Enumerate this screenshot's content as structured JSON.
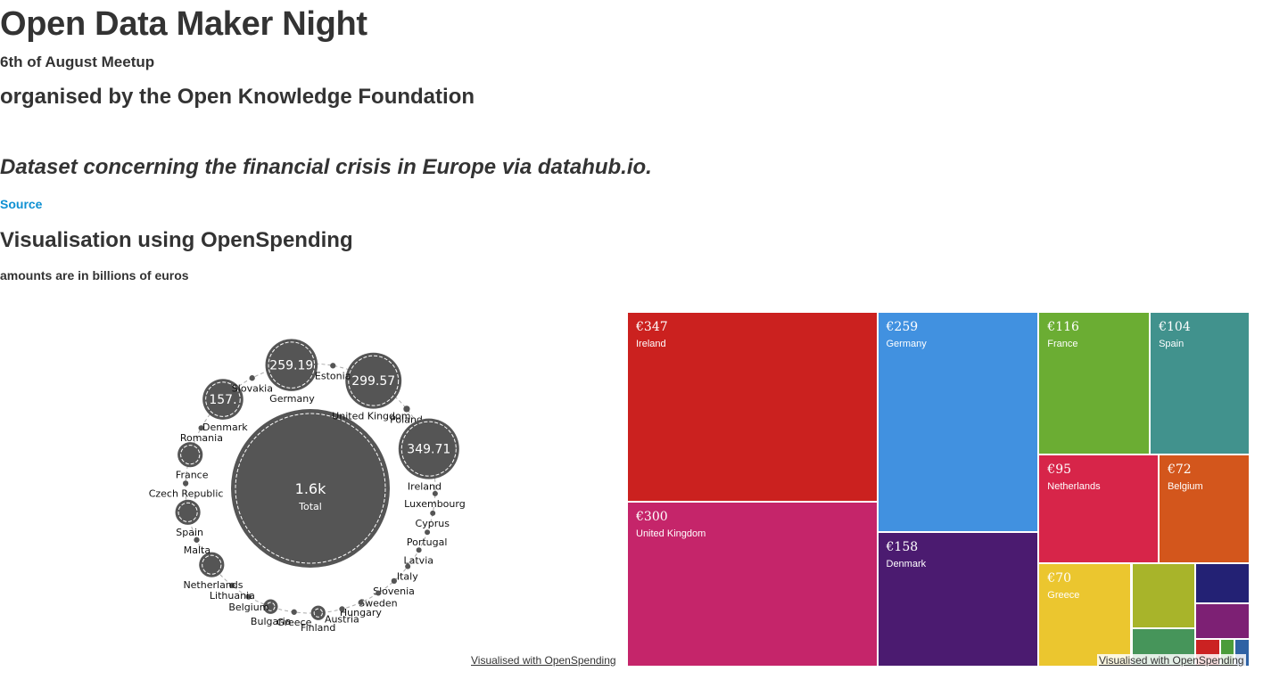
{
  "page": {
    "title": "Open Data Maker Night",
    "subtitle": "6th of August Meetup",
    "organiser": "organised by the Open Knowledge Foundation",
    "dataset_heading": "Dataset concerning the financial crisis in Europe via datahub.io.",
    "source_link": "Source",
    "vis_heading": "Visualisation using OpenSpending",
    "amounts_note": "amounts are in billions of euros",
    "credit_left": "Visualised with OpenSpending",
    "credit_right": "Visualised with OpenSpending"
  },
  "colors": {
    "bubble_fill": "#555555",
    "link": "#0e90d2"
  },
  "chart_data": [
    {
      "type": "bubble",
      "center": {
        "value_label": "1.6k",
        "label": "Total"
      },
      "nodes": [
        {
          "label": "United Kingdom",
          "value": 299.57,
          "value_label": "299.57"
        },
        {
          "label": "Poland",
          "value": 4,
          "value_label": ""
        },
        {
          "label": "Ireland",
          "value": 349.71,
          "value_label": "349.71"
        },
        {
          "label": "Luxembourg",
          "value": 2,
          "value_label": ""
        },
        {
          "label": "Cyprus",
          "value": 1,
          "value_label": ""
        },
        {
          "label": "Portugal",
          "value": 1,
          "value_label": ""
        },
        {
          "label": "Latvia",
          "value": 1,
          "value_label": ""
        },
        {
          "label": "Italy",
          "value": 1,
          "value_label": ""
        },
        {
          "label": "Slovenia",
          "value": 3,
          "value_label": ""
        },
        {
          "label": "Sweden",
          "value": 1,
          "value_label": ""
        },
        {
          "label": "Hungary",
          "value": 2,
          "value_label": ""
        },
        {
          "label": "Austria",
          "value": 3,
          "value_label": ""
        },
        {
          "label": "Finland",
          "value": 20,
          "value_label": ""
        },
        {
          "label": "Greece",
          "value": 3,
          "value_label": ""
        },
        {
          "label": "Bulgaria",
          "value": 20,
          "value_label": ""
        },
        {
          "label": "Belgium",
          "value": 3,
          "value_label": ""
        },
        {
          "label": "Lithuania",
          "value": 3,
          "value_label": ""
        },
        {
          "label": "Netherlands",
          "value": 60,
          "value_label": ""
        },
        {
          "label": "Malta",
          "value": 3,
          "value_label": ""
        },
        {
          "label": "Spain",
          "value": 60,
          "value_label": ""
        },
        {
          "label": "Czech Republic",
          "value": 3,
          "value_label": ""
        },
        {
          "label": "France",
          "value": 60,
          "value_label": ""
        },
        {
          "label": "Romania",
          "value": 1,
          "value_label": ""
        },
        {
          "label": "Denmark",
          "value": 157,
          "value_label": "157."
        },
        {
          "label": "Slovakia",
          "value": 3,
          "value_label": ""
        },
        {
          "label": "Germany",
          "value": 259.19,
          "value_label": "259.19"
        },
        {
          "label": "Estonia",
          "value": 3,
          "value_label": ""
        }
      ]
    },
    {
      "type": "treemap",
      "unit": "billions of euros",
      "tiles": [
        {
          "label": "Ireland",
          "value_label": "€347",
          "value": 347,
          "color": "#cb211f"
        },
        {
          "label": "United Kingdom",
          "value_label": "€300",
          "value": 300,
          "color": "#c5256a"
        },
        {
          "label": "Germany",
          "value_label": "€259",
          "value": 259,
          "color": "#4191e0"
        },
        {
          "label": "Denmark",
          "value_label": "€158",
          "value": 158,
          "color": "#4b1b70"
        },
        {
          "label": "France",
          "value_label": "€116",
          "value": 116,
          "color": "#6bad33"
        },
        {
          "label": "Spain",
          "value_label": "€104",
          "value": 104,
          "color": "#41928d"
        },
        {
          "label": "Netherlands",
          "value_label": "€95",
          "value": 95,
          "color": "#d72549"
        },
        {
          "label": "Belgium",
          "value_label": "€72",
          "value": 72,
          "color": "#d3561c"
        },
        {
          "label": "Greece",
          "value_label": "€70",
          "value": 70,
          "color": "#ebc62f"
        },
        {
          "label": "",
          "value_label": "",
          "value": 30,
          "color": "#a8b42a"
        },
        {
          "label": "",
          "value_label": "",
          "value": 16,
          "color": "#232174"
        },
        {
          "label": "",
          "value_label": "",
          "value": 18,
          "color": "#46955a"
        },
        {
          "label": "",
          "value_label": "",
          "value": 14,
          "color": "#7d2074"
        },
        {
          "label": "",
          "value_label": "",
          "value": 5,
          "color": "#cb2222"
        },
        {
          "label": "",
          "value_label": "",
          "value": 3,
          "color": "#4b9c3a"
        },
        {
          "label": "",
          "value_label": "",
          "value": 3,
          "color": "#2e62a4"
        }
      ]
    }
  ]
}
